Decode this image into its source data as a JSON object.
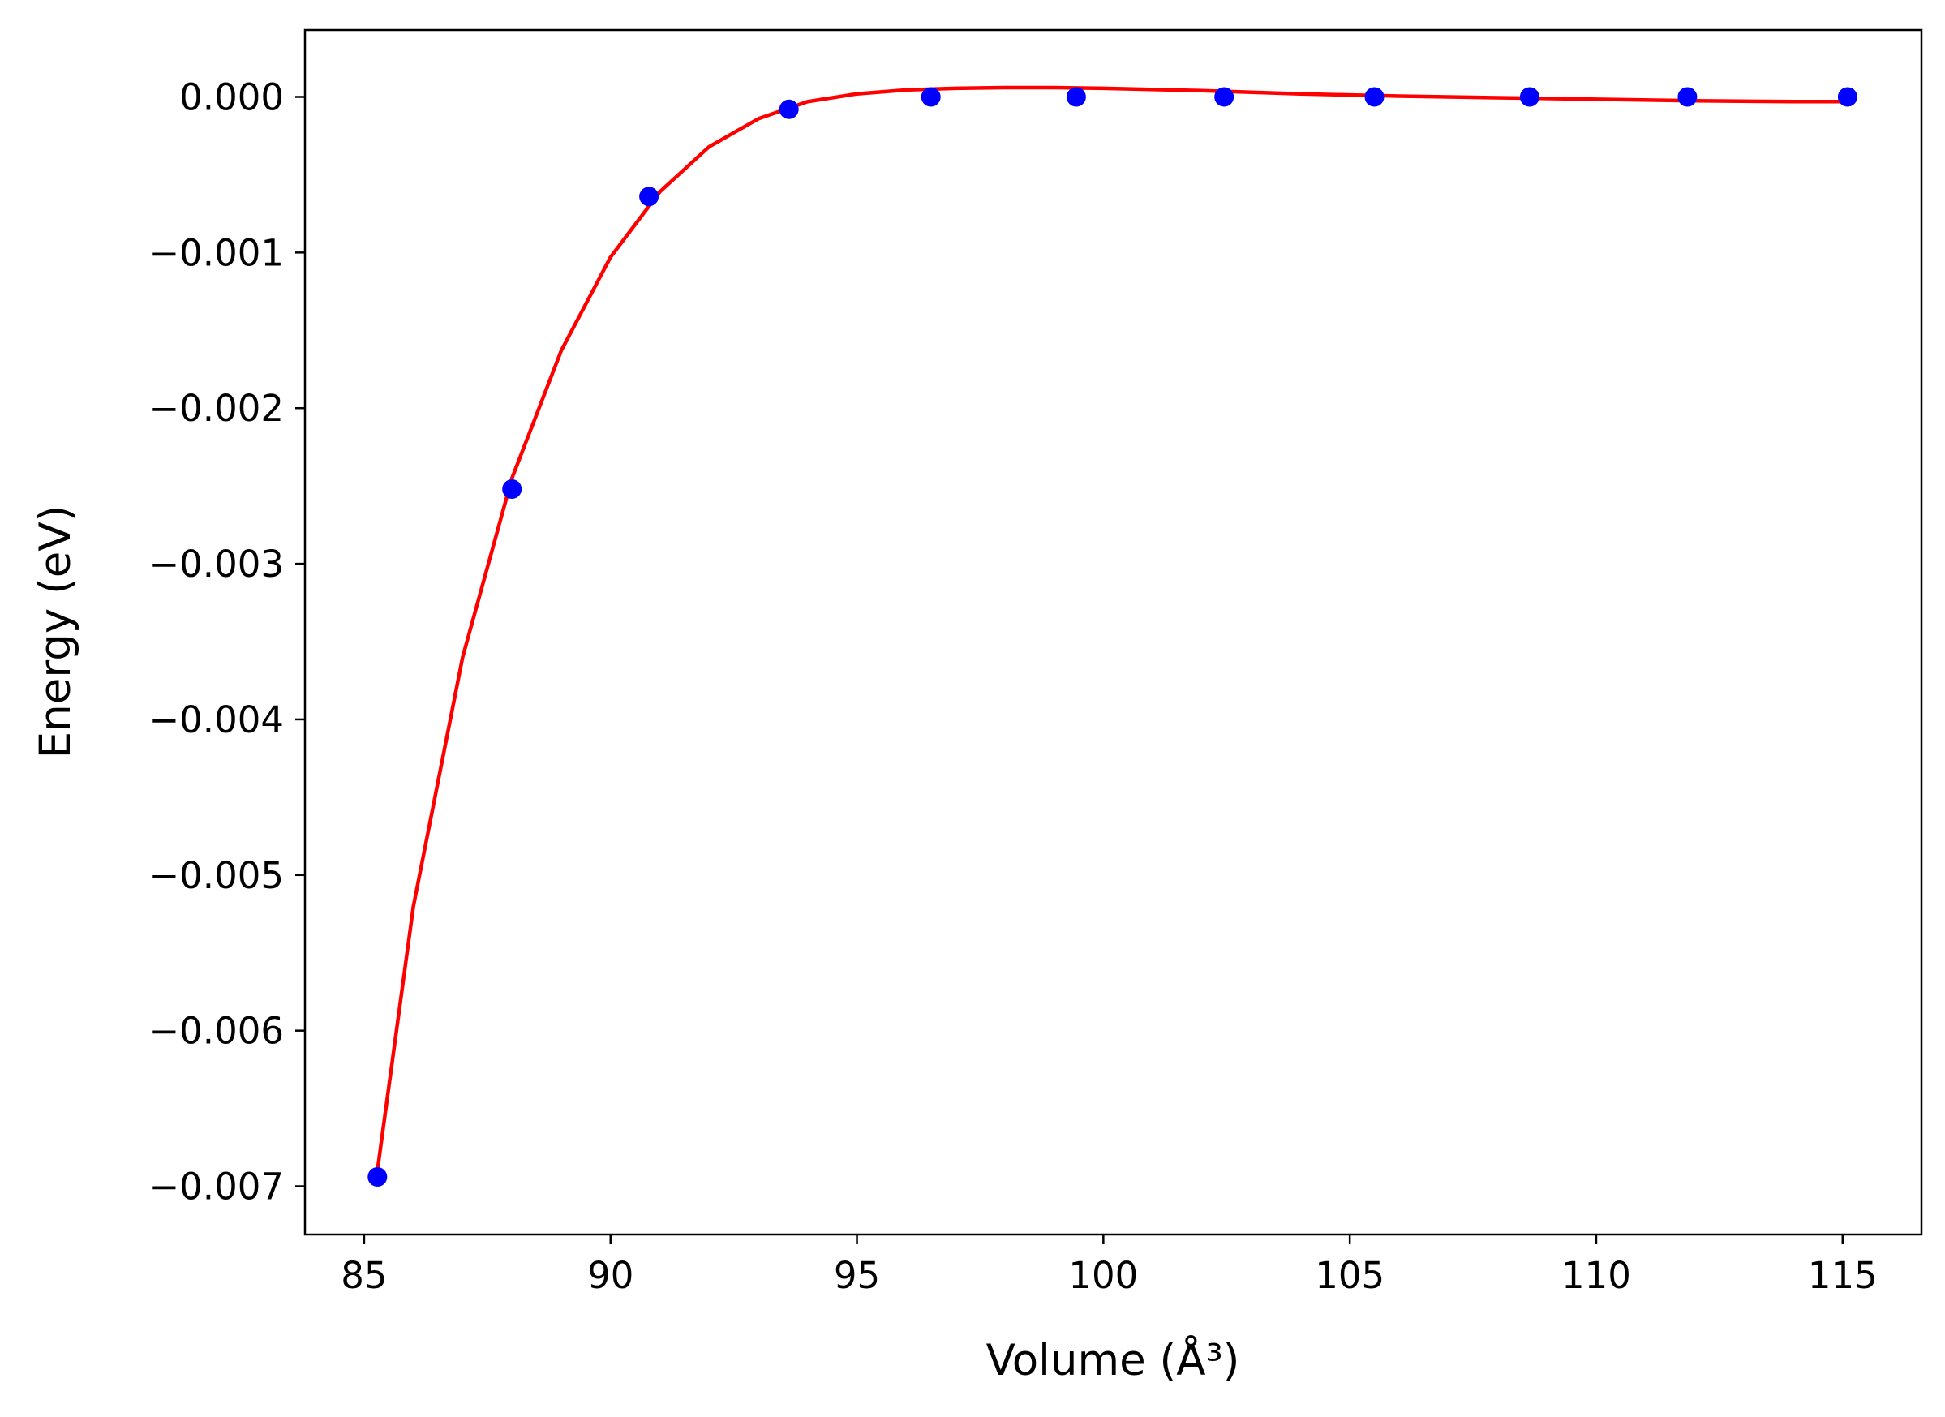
{
  "chart_data": {
    "type": "scatter",
    "xlabel": "Volume (Å³)",
    "ylabel": "Energy (eV)",
    "xlim": [
      83.8,
      116.6
    ],
    "ylim": [
      -0.00731,
      0.00043
    ],
    "x_ticks": [
      85,
      90,
      95,
      100,
      105,
      110,
      115
    ],
    "x_tick_labels": [
      "85",
      "90",
      "95",
      "100",
      "105",
      "110",
      "115"
    ],
    "y_ticks": [
      0.0,
      -0.001,
      -0.002,
      -0.003,
      -0.004,
      -0.005,
      -0.006,
      -0.007
    ],
    "y_tick_labels": [
      "0.000",
      "−0.001",
      "−0.002",
      "−0.003",
      "−0.004",
      "−0.005",
      "−0.006",
      "−0.007"
    ],
    "grid": false,
    "legend": "none",
    "series": [
      {
        "kind": "markers",
        "color": "#0000ff",
        "x": [
          85.27,
          88.0,
          90.78,
          93.62,
          96.5,
          99.45,
          102.45,
          105.5,
          108.65,
          111.85,
          115.1
        ],
        "y": [
          -0.00694,
          -0.00252,
          -0.00064,
          -8e-05,
          0.0,
          0.0,
          0.0,
          0.0,
          0.0,
          0.0,
          0.0
        ]
      },
      {
        "kind": "line",
        "color": "#ff0000",
        "x": [
          85.27,
          86.0,
          87.0,
          88.0,
          89.0,
          90.0,
          91.0,
          92.0,
          93.0,
          94.0,
          95.0,
          96.0,
          97.0,
          98.0,
          99.0,
          100.0,
          102.0,
          104.0,
          106.0,
          108.0,
          110.0,
          112.0,
          114.0,
          115.1
        ],
        "y": [
          -0.0069,
          -0.0052,
          -0.0036,
          -0.00245,
          -0.00163,
          -0.00103,
          -0.00061,
          -0.00032,
          -0.00014,
          -3e-05,
          2e-05,
          4.5e-05,
          5.5e-05,
          6e-05,
          6e-05,
          5.5e-05,
          4e-05,
          2e-05,
          5e-06,
          -5e-06,
          -1.5e-05,
          -2.5e-05,
          -3e-05,
          -3e-05
        ]
      }
    ]
  }
}
